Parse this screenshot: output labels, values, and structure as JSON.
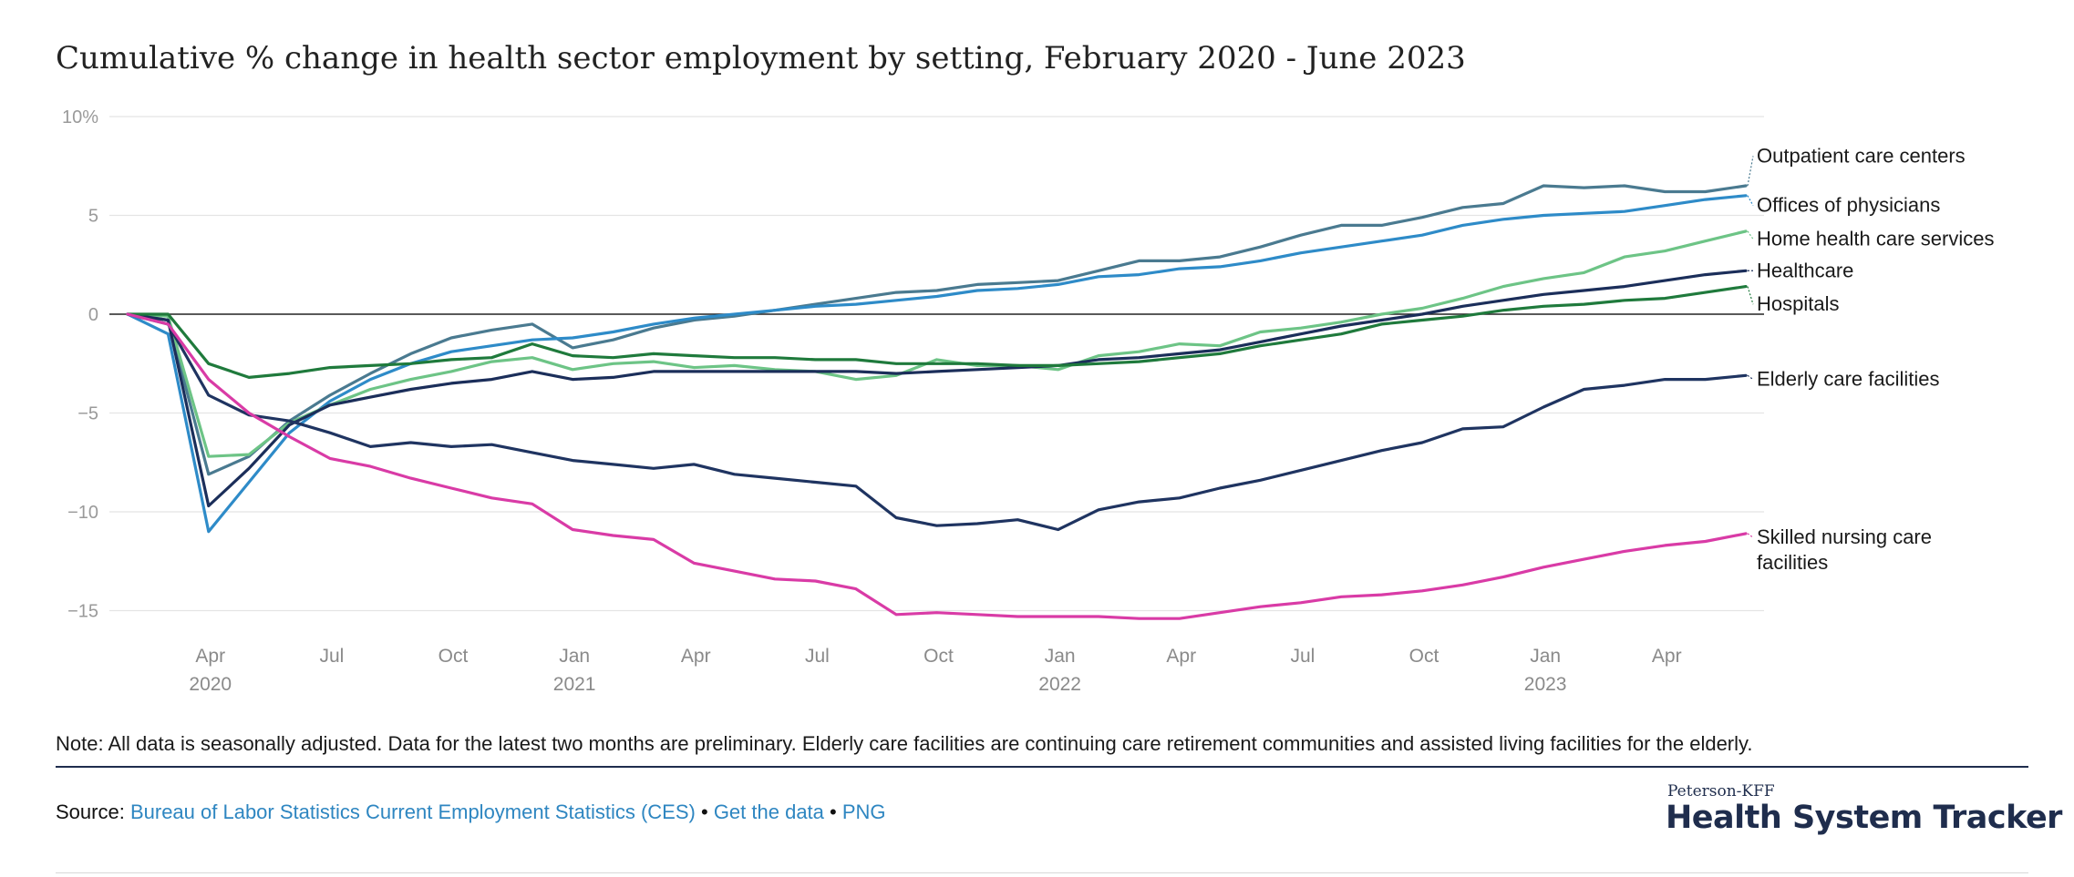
{
  "title": "Cumulative % change in health sector employment by setting, February 2020 - June 2023",
  "note": "Note: All data is seasonally adjusted. Data for the latest two months are preliminary. Elderly care facilities are continuing care retirement communities and assisted living facilities for the elderly.",
  "source": {
    "label": "Source:",
    "link1": "Bureau of Labor Statistics Current Employment Statistics (CES)",
    "sep1": "•",
    "link2": "Get the data",
    "sep2": "•",
    "link3": "PNG"
  },
  "logo": {
    "small": "Peterson-KFF",
    "big": "Health System Tracker"
  },
  "colors": {
    "outpatient": "#4a7a90",
    "physicians": "#2e8bc8",
    "home_health": "#6dc486",
    "healthcare": "#1b2e5a",
    "hospitals": "#1f7a3c",
    "elderly": "#1f3461",
    "skilled_nursing": "#d93ba6"
  },
  "chart_data": {
    "type": "line",
    "title": "Cumulative % change in health sector employment by setting, February 2020 - June 2023",
    "xlabel": "",
    "ylabel": "",
    "x": [
      "2020-02",
      "2020-03",
      "2020-04",
      "2020-05",
      "2020-06",
      "2020-07",
      "2020-08",
      "2020-09",
      "2020-10",
      "2020-11",
      "2020-12",
      "2021-01",
      "2021-02",
      "2021-03",
      "2021-04",
      "2021-05",
      "2021-06",
      "2021-07",
      "2021-08",
      "2021-09",
      "2021-10",
      "2021-11",
      "2021-12",
      "2022-01",
      "2022-02",
      "2022-03",
      "2022-04",
      "2022-05",
      "2022-06",
      "2022-07",
      "2022-08",
      "2022-09",
      "2022-10",
      "2022-11",
      "2022-12",
      "2023-01",
      "2023-02",
      "2023-03",
      "2023-04",
      "2023-05",
      "2023-06"
    ],
    "ylim": [
      -17,
      10
    ],
    "yticks": [
      {
        "value": 10,
        "label": "10%"
      },
      {
        "value": 5,
        "label": "5"
      },
      {
        "value": 0,
        "label": "0"
      },
      {
        "value": -5,
        "label": "−5"
      },
      {
        "value": -10,
        "label": "−10"
      },
      {
        "value": -15,
        "label": "−15"
      }
    ],
    "xticks": [
      {
        "x": "2020-04",
        "month": "Apr",
        "year": "2020"
      },
      {
        "x": "2020-07",
        "month": "Jul",
        "year": ""
      },
      {
        "x": "2020-10",
        "month": "Oct",
        "year": ""
      },
      {
        "x": "2021-01",
        "month": "Jan",
        "year": "2021"
      },
      {
        "x": "2021-04",
        "month": "Apr",
        "year": ""
      },
      {
        "x": "2021-07",
        "month": "Jul",
        "year": ""
      },
      {
        "x": "2021-10",
        "month": "Oct",
        "year": ""
      },
      {
        "x": "2022-01",
        "month": "Jan",
        "year": "2022"
      },
      {
        "x": "2022-04",
        "month": "Apr",
        "year": ""
      },
      {
        "x": "2022-07",
        "month": "Jul",
        "year": ""
      },
      {
        "x": "2022-10",
        "month": "Oct",
        "year": ""
      },
      {
        "x": "2023-01",
        "month": "Jan",
        "year": "2023"
      },
      {
        "x": "2023-04",
        "month": "Apr",
        "year": ""
      }
    ],
    "grid": true,
    "legend": "direct labels at right end of lines",
    "series": [
      {
        "name": "Outpatient care centers",
        "color_key": "outpatient",
        "label_lines": [
          "Outpatient care centers"
        ],
        "label_y": 8.0,
        "values": [
          0,
          -0.3,
          -8.1,
          -7.2,
          -5.4,
          -4.1,
          -3.0,
          -2.0,
          -1.2,
          -0.8,
          -0.5,
          -1.7,
          -1.3,
          -0.7,
          -0.3,
          -0.1,
          0.2,
          0.5,
          0.8,
          1.1,
          1.2,
          1.5,
          1.6,
          1.7,
          2.2,
          2.7,
          2.7,
          2.9,
          3.4,
          4.0,
          4.5,
          4.5,
          4.9,
          5.4,
          5.6,
          6.5,
          6.4,
          6.5,
          6.2,
          6.2,
          6.5
        ]
      },
      {
        "name": "Offices of physicians",
        "color_key": "physicians",
        "label_lines": [
          "Offices of physicians"
        ],
        "label_y": 5.5,
        "values": [
          0,
          -1.0,
          -11.0,
          -8.5,
          -6.0,
          -4.4,
          -3.3,
          -2.5,
          -1.9,
          -1.6,
          -1.3,
          -1.2,
          -0.9,
          -0.5,
          -0.2,
          0.0,
          0.2,
          0.4,
          0.5,
          0.7,
          0.9,
          1.2,
          1.3,
          1.5,
          1.9,
          2.0,
          2.3,
          2.4,
          2.7,
          3.1,
          3.4,
          3.7,
          4.0,
          4.5,
          4.8,
          5.0,
          5.1,
          5.2,
          5.5,
          5.8,
          6.0
        ]
      },
      {
        "name": "Home health care services",
        "color_key": "home_health",
        "label_lines": [
          "Home health care services"
        ],
        "label_y": 3.8,
        "values": [
          0,
          -0.1,
          -7.2,
          -7.1,
          -5.5,
          -4.6,
          -3.8,
          -3.3,
          -2.9,
          -2.4,
          -2.2,
          -2.8,
          -2.5,
          -2.4,
          -2.7,
          -2.6,
          -2.8,
          -2.9,
          -3.3,
          -3.1,
          -2.3,
          -2.6,
          -2.6,
          -2.8,
          -2.1,
          -1.9,
          -1.5,
          -1.6,
          -0.9,
          -0.7,
          -0.4,
          0.0,
          0.3,
          0.8,
          1.4,
          1.8,
          2.1,
          2.9,
          3.2,
          3.7,
          4.2
        ]
      },
      {
        "name": "Healthcare",
        "color_key": "healthcare",
        "label_lines": [
          "Healthcare"
        ],
        "label_y": 2.2,
        "values": [
          0,
          -0.3,
          -9.7,
          -7.8,
          -5.6,
          -4.6,
          -4.2,
          -3.8,
          -3.5,
          -3.3,
          -2.9,
          -3.3,
          -3.2,
          -2.9,
          -2.9,
          -2.9,
          -2.9,
          -2.9,
          -2.9,
          -3.0,
          -2.9,
          -2.8,
          -2.7,
          -2.6,
          -2.3,
          -2.2,
          -2.0,
          -1.8,
          -1.4,
          -1.0,
          -0.6,
          -0.3,
          0.0,
          0.4,
          0.7,
          1.0,
          1.2,
          1.4,
          1.7,
          2.0,
          2.2
        ]
      },
      {
        "name": "Hospitals",
        "color_key": "hospitals",
        "label_lines": [
          "Hospitals"
        ],
        "label_y": 0.5,
        "values": [
          0,
          0.0,
          -2.5,
          -3.2,
          -3.0,
          -2.7,
          -2.6,
          -2.5,
          -2.3,
          -2.2,
          -1.5,
          -2.1,
          -2.2,
          -2.0,
          -2.1,
          -2.2,
          -2.2,
          -2.3,
          -2.3,
          -2.5,
          -2.5,
          -2.5,
          -2.6,
          -2.6,
          -2.5,
          -2.4,
          -2.2,
          -2.0,
          -1.6,
          -1.3,
          -1.0,
          -0.5,
          -0.3,
          -0.1,
          0.2,
          0.4,
          0.5,
          0.7,
          0.8,
          1.1,
          1.4
        ]
      },
      {
        "name": "Elderly care facilities",
        "color_key": "elderly",
        "label_lines": [
          "Elderly care facilities"
        ],
        "label_y": -3.3,
        "values": [
          0,
          -0.5,
          -4.1,
          -5.1,
          -5.4,
          -6.0,
          -6.7,
          -6.5,
          -6.7,
          -6.6,
          -7.0,
          -7.4,
          -7.6,
          -7.8,
          -7.6,
          -8.1,
          -8.3,
          -8.5,
          -8.7,
          -10.3,
          -10.7,
          -10.6,
          -10.4,
          -10.9,
          -9.9,
          -9.5,
          -9.3,
          -8.8,
          -8.4,
          -7.9,
          -7.4,
          -6.9,
          -6.5,
          -5.8,
          -5.7,
          -4.7,
          -3.8,
          -3.6,
          -3.3,
          -3.3,
          -3.1
        ]
      },
      {
        "name": "Skilled nursing care facilities",
        "color_key": "skilled_nursing",
        "label_lines": [
          "Skilled nursing care",
          "facilities"
        ],
        "label_y": -11.3,
        "values": [
          0,
          -0.5,
          -3.3,
          -5.0,
          -6.2,
          -7.3,
          -7.7,
          -8.3,
          -8.8,
          -9.3,
          -9.6,
          -10.9,
          -11.2,
          -11.4,
          -12.6,
          -13.0,
          -13.4,
          -13.5,
          -13.9,
          -15.2,
          -15.1,
          -15.2,
          -15.3,
          -15.3,
          -15.3,
          -15.4,
          -15.4,
          -15.1,
          -14.8,
          -14.6,
          -14.3,
          -14.2,
          -14.0,
          -13.7,
          -13.3,
          -12.8,
          -12.4,
          -12.0,
          -11.7,
          -11.5,
          -11.1
        ]
      }
    ]
  }
}
